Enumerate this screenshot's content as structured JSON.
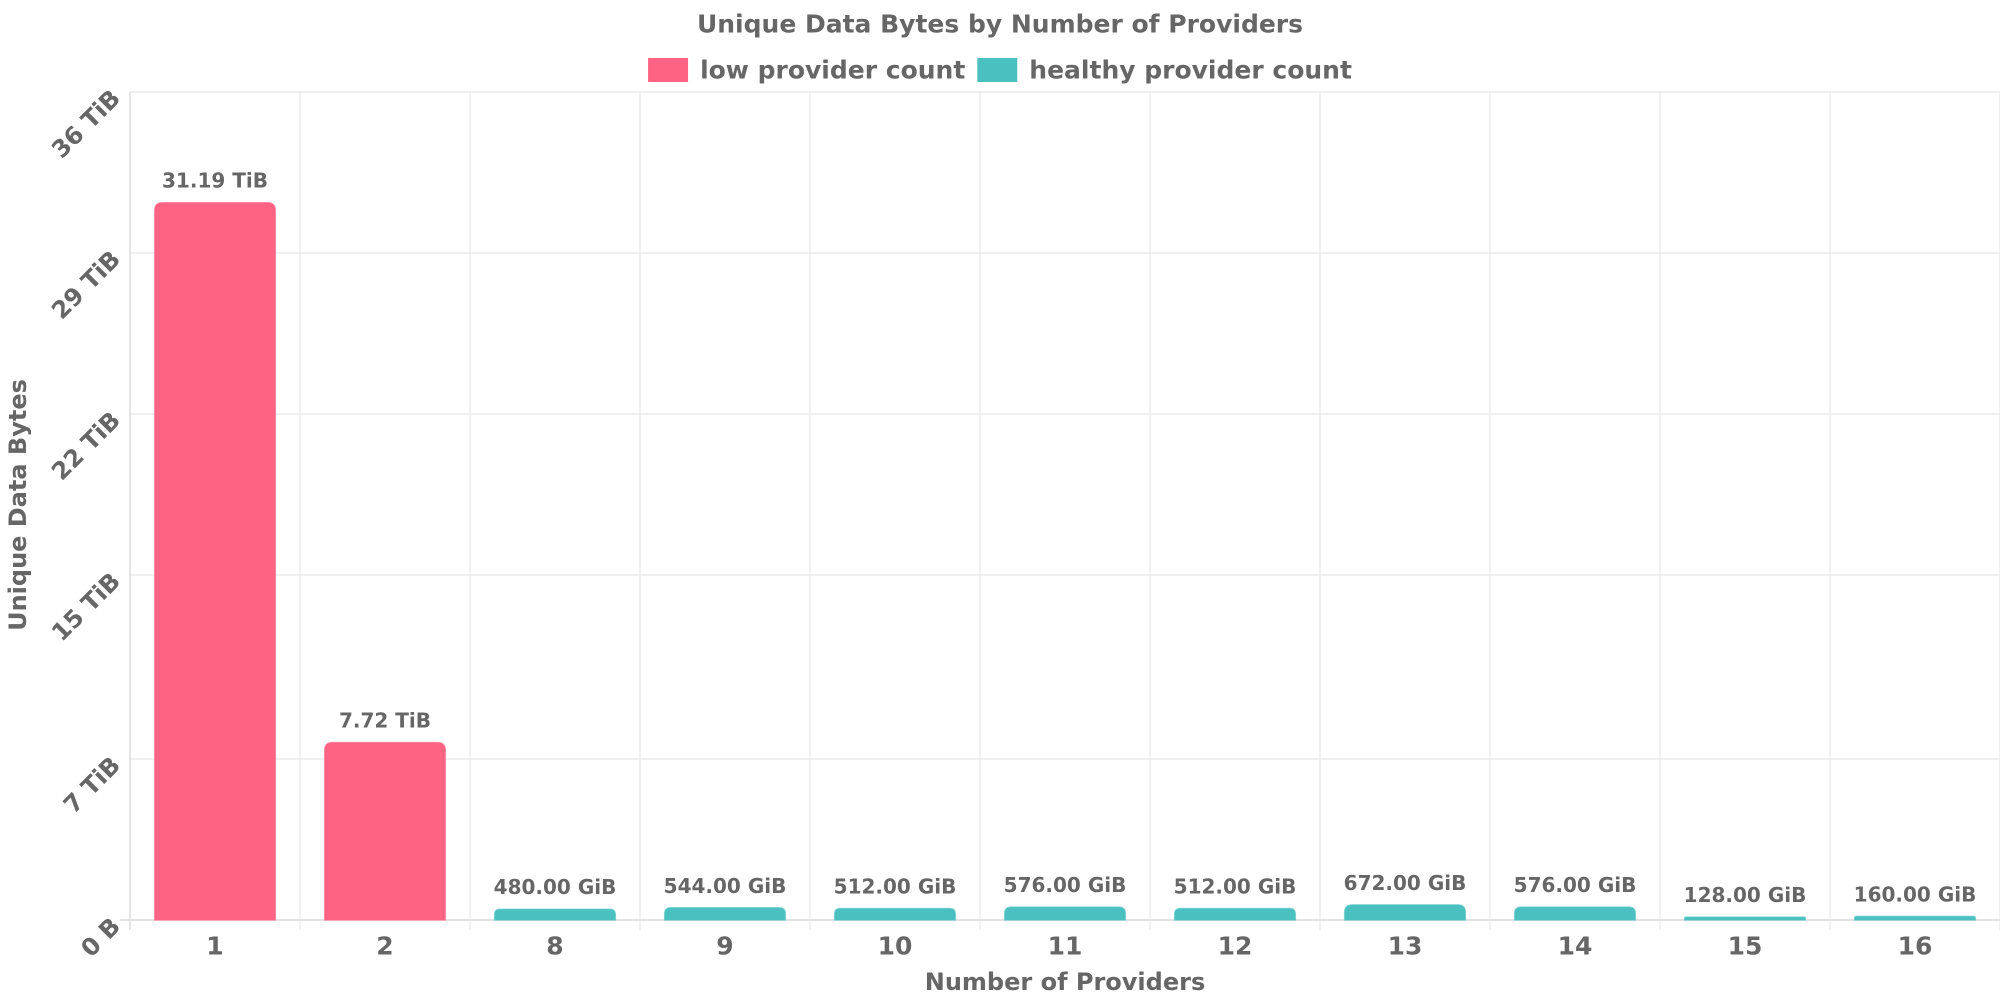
{
  "chart_data": {
    "type": "bar",
    "title": "Unique Data Bytes by Number of Providers",
    "xlabel": "Number of Providers",
    "ylabel": "Unique Data Bytes",
    "categories": [
      "1",
      "2",
      "8",
      "9",
      "10",
      "11",
      "12",
      "13",
      "14",
      "15",
      "16"
    ],
    "values_tib": [
      31.19,
      7.72,
      0.46875,
      0.53125,
      0.5,
      0.5625,
      0.5,
      0.65625,
      0.5625,
      0.125,
      0.15625
    ],
    "data_labels": [
      "31.19 TiB",
      "7.72 TiB",
      "480.00 GiB",
      "544.00 GiB",
      "512.00 GiB",
      "576.00 GiB",
      "512.00 GiB",
      "672.00 GiB",
      "576.00 GiB",
      "128.00 GiB",
      "160.00 GiB"
    ],
    "bar_series": [
      "low",
      "low",
      "healthy",
      "healthy",
      "healthy",
      "healthy",
      "healthy",
      "healthy",
      "healthy",
      "healthy",
      "healthy"
    ],
    "legend": [
      {
        "key": "low",
        "name": "low provider count",
        "color": "#ff6384"
      },
      {
        "key": "healthy",
        "name": "healthy provider count",
        "color": "#4bc0c0"
      }
    ],
    "yticks": [
      {
        "value": 0,
        "label": "0 B"
      },
      {
        "value": 7,
        "label": "7 TiB"
      },
      {
        "value": 15,
        "label": "15 TiB"
      },
      {
        "value": 22,
        "label": "22 TiB"
      },
      {
        "value": 29,
        "label": "29 TiB"
      },
      {
        "value": 36,
        "label": "36 TiB"
      }
    ],
    "ylim": [
      0,
      36
    ],
    "grid": true,
    "legend_position": "top"
  }
}
